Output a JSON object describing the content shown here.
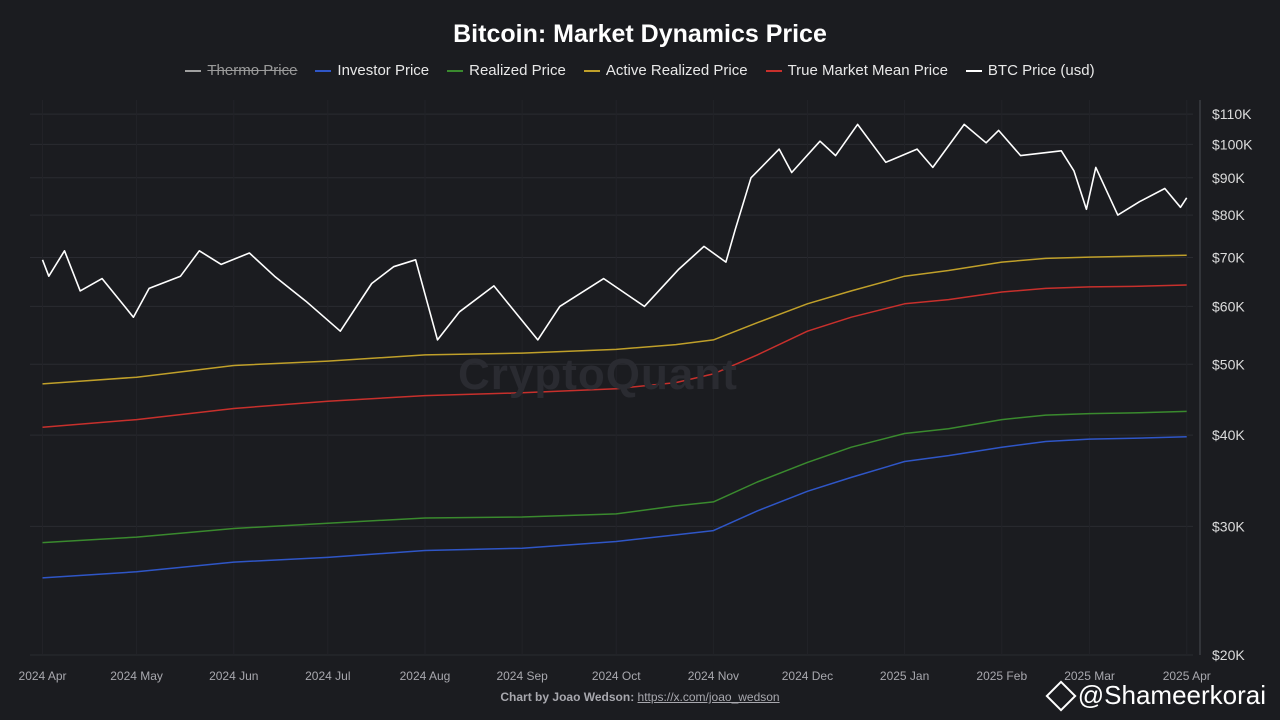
{
  "header": {
    "title": "Bitcoin: Market Dynamics Price"
  },
  "legend": [
    {
      "label": "Thermo Price",
      "color": "#a0a0a0",
      "hidden": true
    },
    {
      "label": "Investor Price",
      "color": "#2f56c7",
      "hidden": false
    },
    {
      "label": "Realized Price",
      "color": "#3a8a2e",
      "hidden": false
    },
    {
      "label": "Active Realized Price",
      "color": "#c0a02a",
      "hidden": false
    },
    {
      "label": "True Market Mean Price",
      "color": "#c8302c",
      "hidden": false
    },
    {
      "label": "BTC Price (usd)",
      "color": "#ffffff",
      "hidden": false
    }
  ],
  "watermark": "CryptoQuant",
  "footer": {
    "credit_prefix": "Chart by Joao Wedson:",
    "credit_link": "https://x.com/joao_wedson",
    "handle": "@Shameerkorai"
  },
  "chart_data": {
    "type": "line",
    "y_scale": "log",
    "ylim": [
      20000,
      115000
    ],
    "grid": true,
    "legend_position": "top-center",
    "x_ticks": [
      "2024 Apr",
      "2024 May",
      "2024 Jun",
      "2024 Jul",
      "2024 Aug",
      "2024 Sep",
      "2024 Oct",
      "2024 Nov",
      "2024 Dec",
      "2025 Jan",
      "2025 Feb",
      "2025 Mar",
      "2025 Apr"
    ],
    "y_ticks": [
      {
        "value": 20000,
        "label": "$20K"
      },
      {
        "value": 30000,
        "label": "$30K"
      },
      {
        "value": 40000,
        "label": "$40K"
      },
      {
        "value": 50000,
        "label": "$50K"
      },
      {
        "value": 60000,
        "label": "$60K"
      },
      {
        "value": 70000,
        "label": "$70K"
      },
      {
        "value": 80000,
        "label": "$80K"
      },
      {
        "value": 90000,
        "label": "$90K"
      },
      {
        "value": 100000,
        "label": "$100K"
      },
      {
        "value": 110000,
        "label": "$110K"
      }
    ],
    "series": [
      {
        "name": "Investor Price",
        "color": "#2f56c7",
        "points": [
          [
            "2024-04-01",
            25500
          ],
          [
            "2024-05-01",
            26000
          ],
          [
            "2024-06-01",
            26800
          ],
          [
            "2024-07-01",
            27200
          ],
          [
            "2024-08-01",
            27800
          ],
          [
            "2024-09-01",
            28000
          ],
          [
            "2024-10-01",
            28600
          ],
          [
            "2024-10-20",
            29200
          ],
          [
            "2024-11-01",
            29600
          ],
          [
            "2024-11-15",
            31500
          ],
          [
            "2024-12-01",
            33500
          ],
          [
            "2024-12-15",
            35000
          ],
          [
            "2025-01-01",
            36800
          ],
          [
            "2025-01-15",
            37500
          ],
          [
            "2025-02-01",
            38500
          ],
          [
            "2025-02-15",
            39200
          ],
          [
            "2025-03-01",
            39500
          ],
          [
            "2025-03-15",
            39600
          ],
          [
            "2025-04-01",
            39800
          ]
        ]
      },
      {
        "name": "Realized Price",
        "color": "#3a8a2e",
        "points": [
          [
            "2024-04-01",
            28500
          ],
          [
            "2024-05-01",
            29000
          ],
          [
            "2024-06-01",
            29800
          ],
          [
            "2024-07-01",
            30300
          ],
          [
            "2024-08-01",
            30800
          ],
          [
            "2024-09-01",
            30900
          ],
          [
            "2024-10-01",
            31200
          ],
          [
            "2024-10-20",
            32000
          ],
          [
            "2024-11-01",
            32400
          ],
          [
            "2024-11-15",
            34500
          ],
          [
            "2024-12-01",
            36700
          ],
          [
            "2024-12-15",
            38500
          ],
          [
            "2025-01-01",
            40200
          ],
          [
            "2025-01-15",
            40800
          ],
          [
            "2025-02-01",
            42000
          ],
          [
            "2025-02-15",
            42600
          ],
          [
            "2025-03-01",
            42800
          ],
          [
            "2025-03-15",
            42900
          ],
          [
            "2025-04-01",
            43100
          ]
        ]
      },
      {
        "name": "Active Realized Price",
        "color": "#c0a02a",
        "points": [
          [
            "2024-04-01",
            47000
          ],
          [
            "2024-05-01",
            48000
          ],
          [
            "2024-06-01",
            49800
          ],
          [
            "2024-07-01",
            50500
          ],
          [
            "2024-08-01",
            51500
          ],
          [
            "2024-09-01",
            51800
          ],
          [
            "2024-10-01",
            52400
          ],
          [
            "2024-10-20",
            53200
          ],
          [
            "2024-11-01",
            54000
          ],
          [
            "2024-11-15",
            57000
          ],
          [
            "2024-12-01",
            60500
          ],
          [
            "2024-12-15",
            63000
          ],
          [
            "2025-01-01",
            66000
          ],
          [
            "2025-01-15",
            67200
          ],
          [
            "2025-02-01",
            69000
          ],
          [
            "2025-02-15",
            69800
          ],
          [
            "2025-03-01",
            70100
          ],
          [
            "2025-03-15",
            70300
          ],
          [
            "2025-04-01",
            70500
          ]
        ]
      },
      {
        "name": "True Market Mean Price",
        "color": "#c8302c",
        "points": [
          [
            "2024-04-01",
            41000
          ],
          [
            "2024-05-01",
            42000
          ],
          [
            "2024-06-01",
            43500
          ],
          [
            "2024-07-01",
            44500
          ],
          [
            "2024-08-01",
            45300
          ],
          [
            "2024-09-01",
            45700
          ],
          [
            "2024-10-01",
            46300
          ],
          [
            "2024-10-20",
            47200
          ],
          [
            "2024-11-01",
            48500
          ],
          [
            "2024-11-15",
            51500
          ],
          [
            "2024-12-01",
            55500
          ],
          [
            "2024-12-15",
            58000
          ],
          [
            "2025-01-01",
            60500
          ],
          [
            "2025-01-15",
            61300
          ],
          [
            "2025-02-01",
            62800
          ],
          [
            "2025-02-15",
            63500
          ],
          [
            "2025-03-01",
            63800
          ],
          [
            "2025-03-15",
            63900
          ],
          [
            "2025-04-01",
            64200
          ]
        ]
      },
      {
        "name": "BTC Price (usd)",
        "color": "#ffffff",
        "points": [
          [
            "2024-04-01",
            69500
          ],
          [
            "2024-04-03",
            66000
          ],
          [
            "2024-04-08",
            71500
          ],
          [
            "2024-04-13",
            63000
          ],
          [
            "2024-04-20",
            65500
          ],
          [
            "2024-04-30",
            58000
          ],
          [
            "2024-05-05",
            63500
          ],
          [
            "2024-05-15",
            66000
          ],
          [
            "2024-05-21",
            71500
          ],
          [
            "2024-05-28",
            68500
          ],
          [
            "2024-06-06",
            71000
          ],
          [
            "2024-06-14",
            66000
          ],
          [
            "2024-06-24",
            61000
          ],
          [
            "2024-07-05",
            55500
          ],
          [
            "2024-07-15",
            64500
          ],
          [
            "2024-07-22",
            68000
          ],
          [
            "2024-07-29",
            69500
          ],
          [
            "2024-08-05",
            54000
          ],
          [
            "2024-08-12",
            59000
          ],
          [
            "2024-08-23",
            64000
          ],
          [
            "2024-09-06",
            54000
          ],
          [
            "2024-09-13",
            60000
          ],
          [
            "2024-09-27",
            65500
          ],
          [
            "2024-10-10",
            60000
          ],
          [
            "2024-10-21",
            67500
          ],
          [
            "2024-10-29",
            72500
          ],
          [
            "2024-11-05",
            69000
          ],
          [
            "2024-11-08",
            76500
          ],
          [
            "2024-11-13",
            90000
          ],
          [
            "2024-11-22",
            98500
          ],
          [
            "2024-11-26",
            91500
          ],
          [
            "2024-12-05",
            101000
          ],
          [
            "2024-12-10",
            96500
          ],
          [
            "2024-12-17",
            106500
          ],
          [
            "2024-12-26",
            94500
          ],
          [
            "2025-01-05",
            98500
          ],
          [
            "2025-01-10",
            93000
          ],
          [
            "2025-01-20",
            106500
          ],
          [
            "2025-01-27",
            100500
          ],
          [
            "2025-01-31",
            104500
          ],
          [
            "2025-02-07",
            96500
          ],
          [
            "2025-02-20",
            98000
          ],
          [
            "2025-02-24",
            92000
          ],
          [
            "2025-02-28",
            81500
          ],
          [
            "2025-03-03",
            93000
          ],
          [
            "2025-03-10",
            80000
          ],
          [
            "2025-03-17",
            83500
          ],
          [
            "2025-03-25",
            87000
          ],
          [
            "2025-03-30",
            82000
          ],
          [
            "2025-04-01",
            84500
          ]
        ]
      }
    ]
  }
}
